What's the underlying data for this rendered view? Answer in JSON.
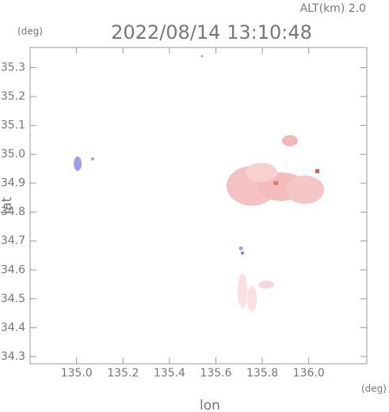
{
  "chart_data": {
    "type": "map",
    "title": "2022/08/14 13:10:48",
    "subtitle": "ALT(km) 2.0",
    "x_label": "lon",
    "y_label": "lat",
    "x_unit": "(deg)",
    "y_unit": "(deg)",
    "xlim": [
      134.8,
      136.25
    ],
    "ylim": [
      34.275,
      35.37
    ],
    "xticks": [
      {
        "value": 135.0,
        "label": "135.0"
      },
      135.2,
      135.4,
      135.6,
      135.8,
      {
        "value": 136.0,
        "label": "136.0"
      }
    ],
    "yticks": [
      34.3,
      34.4,
      34.5,
      34.6,
      34.7,
      34.8,
      34.9,
      {
        "value": 35.0,
        "label": "35.0"
      },
      35.1,
      35.2,
      35.3
    ]
  }
}
